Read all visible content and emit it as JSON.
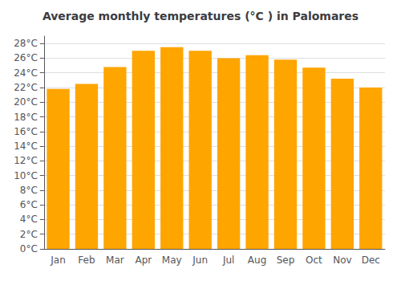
{
  "chart_data": {
    "type": "bar",
    "title": "Average monthly temperatures (°C ) in Palomares",
    "categories": [
      "Jan",
      "Feb",
      "Mar",
      "Apr",
      "May",
      "Jun",
      "Jul",
      "Aug",
      "Sep",
      "Oct",
      "Nov",
      "Dec"
    ],
    "values": [
      21.8,
      22.5,
      24.8,
      27.0,
      27.5,
      27.0,
      26.0,
      26.4,
      25.8,
      24.7,
      23.2,
      22.0
    ],
    "color": "#FFA500",
    "ylim": [
      0,
      29
    ],
    "yticks": [
      {
        "value": 0,
        "label": "0°C"
      },
      {
        "value": 2,
        "label": "2°C"
      },
      {
        "value": 4,
        "label": "4°C"
      },
      {
        "value": 6,
        "label": "6°C"
      },
      {
        "value": 8,
        "label": "8°C"
      },
      {
        "value": 10,
        "label": "10°C"
      },
      {
        "value": 12,
        "label": "12°C"
      },
      {
        "value": 14,
        "label": "14°C"
      },
      {
        "value": 16,
        "label": "16°C"
      },
      {
        "value": 18,
        "label": "18°C"
      },
      {
        "value": 20,
        "label": "20°C"
      },
      {
        "value": 22,
        "label": "22°C"
      },
      {
        "value": 24,
        "label": "24°C"
      },
      {
        "value": 26,
        "label": "26°C"
      },
      {
        "value": 28,
        "label": "28°C"
      }
    ],
    "grid": true
  }
}
